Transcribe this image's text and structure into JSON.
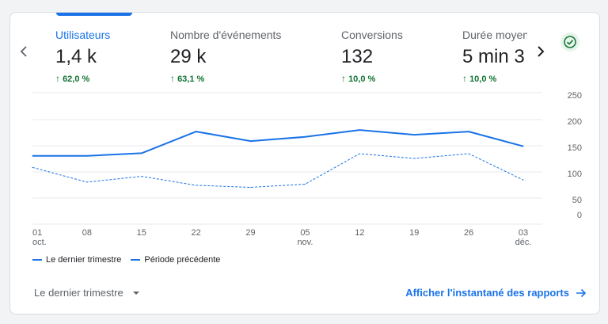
{
  "metrics": [
    {
      "label": "Utilisateurs",
      "value": "1,4 k",
      "change": "62,0 %"
    },
    {
      "label": "Nombre d'événements",
      "value": "29 k",
      "change": "63,1 %"
    },
    {
      "label": "Conversions",
      "value": "132",
      "change": "10,0 %"
    },
    {
      "label": "Durée moyen",
      "value": "5 min 3",
      "change": "10,0 %"
    }
  ],
  "colors": {
    "accent": "#1a73e8",
    "positive": "#137333",
    "grid": "#e8eaed"
  },
  "icons": {
    "prev": "chevron-left-icon",
    "next": "chevron-right-icon",
    "status": "check-circle-icon",
    "up": "arrow-up-icon",
    "dropdown": "caret-down-icon",
    "link": "arrow-right-icon"
  },
  "legend": {
    "current": "Le dernier trimestre",
    "previous": "Période précédente"
  },
  "footer": {
    "period": "Le dernier trimestre",
    "link": "Afficher l'instantané des rapports"
  },
  "chart_data": {
    "type": "line",
    "x": [
      "01",
      "08",
      "15",
      "22",
      "29",
      "05",
      "12",
      "19",
      "26",
      "03"
    ],
    "x_sublabels": [
      "oct.",
      "",
      "",
      "",
      "",
      "nov.",
      "",
      "",
      "",
      "déc."
    ],
    "y_ticks": [
      "250",
      "200",
      "150",
      "100",
      "50",
      "0"
    ],
    "series": [
      {
        "name": "Le dernier trimestre",
        "style": "solid",
        "values": [
          130,
          130,
          135,
          176,
          158,
          166,
          179,
          170,
          176,
          148
        ]
      },
      {
        "name": "Période précédente",
        "style": "dashed",
        "values": [
          108,
          80,
          91,
          74,
          70,
          76,
          134,
          125,
          134,
          84
        ]
      }
    ]
  }
}
